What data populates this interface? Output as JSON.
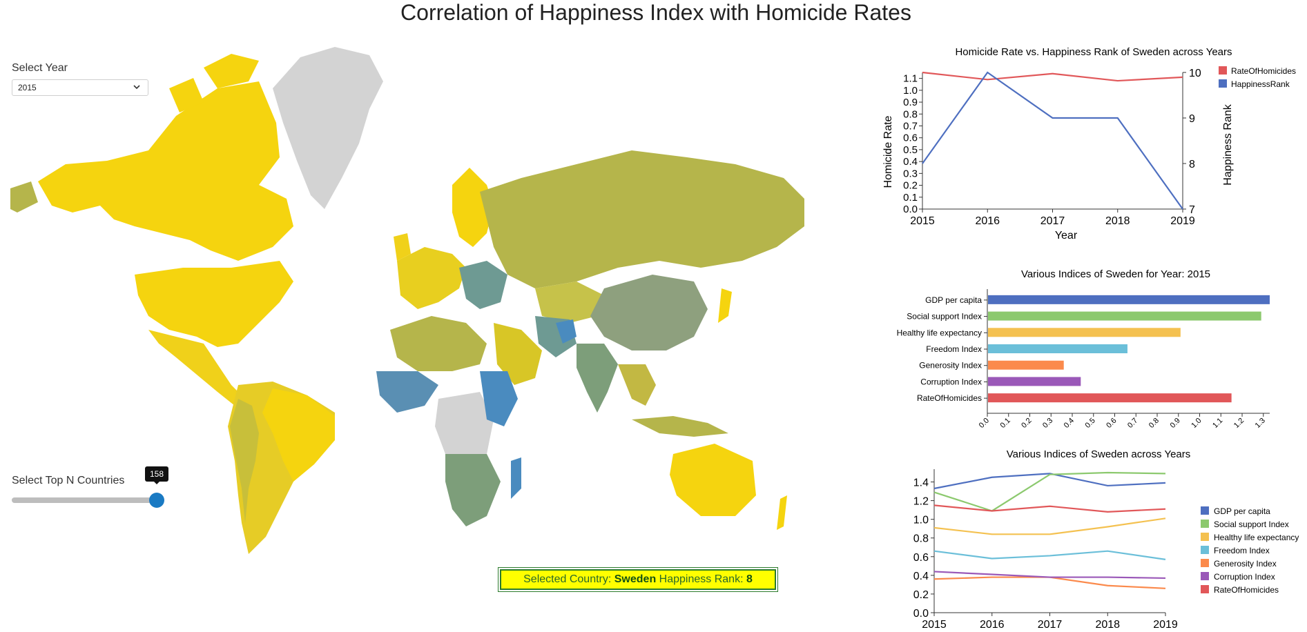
{
  "page": {
    "title": "Correlation of Happiness Index with Homicide Rates"
  },
  "controls": {
    "year_label": "Select Year",
    "year_value": "2015",
    "topn_label": "Select Top N Countries",
    "topn_value": "158",
    "topn_fraction": 1.0
  },
  "status": {
    "prefix": "Selected Country: ",
    "country": "Sweden",
    "middle": " Happiness Rank: ",
    "rank": "8"
  },
  "colors": {
    "happy_high": "#f5d40f",
    "happy_mid": "#b5b54b",
    "happy_low": "#4a8bbf",
    "no_data": "#d3d3d3",
    "homicide": "#e15759",
    "rank": "#4e6fc0"
  },
  "chart_data": [
    {
      "type": "line",
      "title": "Homicide Rate vs. Happiness Rank of Sweden across Years",
      "xlabel": "Year",
      "ylabel": "Homicide Rate",
      "y2label": "Happiness Rank",
      "x": [
        2015,
        2016,
        2017,
        2018,
        2019
      ],
      "ylim": [
        0,
        1.15
      ],
      "y2lim": [
        7,
        10
      ],
      "yticks": [
        "0.0",
        "0.1",
        "0.2",
        "0.3",
        "0.4",
        "0.5",
        "0.6",
        "0.7",
        "0.8",
        "0.9",
        "1.0",
        "1.1"
      ],
      "y2ticks": [
        "7",
        "8",
        "9",
        "10"
      ],
      "series": [
        {
          "name": "RateOfHomicides",
          "axis": "left",
          "color": "#e15759",
          "values": [
            1.15,
            1.09,
            1.14,
            1.08,
            1.11
          ]
        },
        {
          "name": "HappinessRank",
          "axis": "right",
          "color": "#4e6fc0",
          "values": [
            8,
            10,
            9,
            9,
            7
          ]
        }
      ],
      "legend": "top-right"
    },
    {
      "type": "bar",
      "orientation": "horizontal",
      "title": "Various Indices of Sweden for Year: 2015",
      "categories": [
        "GDP per capita",
        "Social support Index",
        "Healthy life expectancy",
        "Freedom Index",
        "Generosity Index",
        "Corruption Index",
        "RateOfHomicides"
      ],
      "values": [
        1.33,
        1.29,
        0.91,
        0.66,
        0.36,
        0.44,
        1.15
      ],
      "colors": [
        "#4e6fc0",
        "#8cc96e",
        "#f4c150",
        "#6bbfd9",
        "#fb8a4c",
        "#9a58b8",
        "#e15759"
      ],
      "xlim": [
        0,
        1.33
      ],
      "xticks": [
        "0.0",
        "0.1",
        "0.2",
        "0.3",
        "0.4",
        "0.5",
        "0.6",
        "0.7",
        "0.8",
        "0.9",
        "1.0",
        "1.1",
        "1.2",
        "1.3"
      ]
    },
    {
      "type": "line",
      "title": "Various Indices of Sweden across Years",
      "x": [
        2015,
        2016,
        2017,
        2018,
        2019
      ],
      "ylim": [
        0,
        1.5
      ],
      "yticks": [
        "0.0",
        "0.2",
        "0.4",
        "0.6",
        "0.8",
        "1.0",
        "1.2",
        "1.4"
      ],
      "series": [
        {
          "name": "GDP per capita",
          "color": "#4e6fc0",
          "values": [
            1.33,
            1.45,
            1.49,
            1.36,
            1.39
          ]
        },
        {
          "name": "Social support Index",
          "color": "#8cc96e",
          "values": [
            1.29,
            1.09,
            1.48,
            1.5,
            1.49
          ]
        },
        {
          "name": "Healthy life expectancy",
          "color": "#f4c150",
          "values": [
            0.91,
            0.84,
            0.84,
            0.92,
            1.01
          ]
        },
        {
          "name": "Freedom Index",
          "color": "#6bbfd9",
          "values": [
            0.66,
            0.58,
            0.61,
            0.66,
            0.57
          ]
        },
        {
          "name": "Generosity Index",
          "color": "#fb8a4c",
          "values": [
            0.36,
            0.38,
            0.38,
            0.29,
            0.26
          ]
        },
        {
          "name": "Corruption Index",
          "color": "#9a58b8",
          "values": [
            0.44,
            0.41,
            0.38,
            0.38,
            0.37
          ]
        },
        {
          "name": "RateOfHomicides",
          "color": "#e15759",
          "values": [
            1.15,
            1.09,
            1.14,
            1.08,
            1.11
          ]
        }
      ],
      "legend": "right"
    }
  ]
}
